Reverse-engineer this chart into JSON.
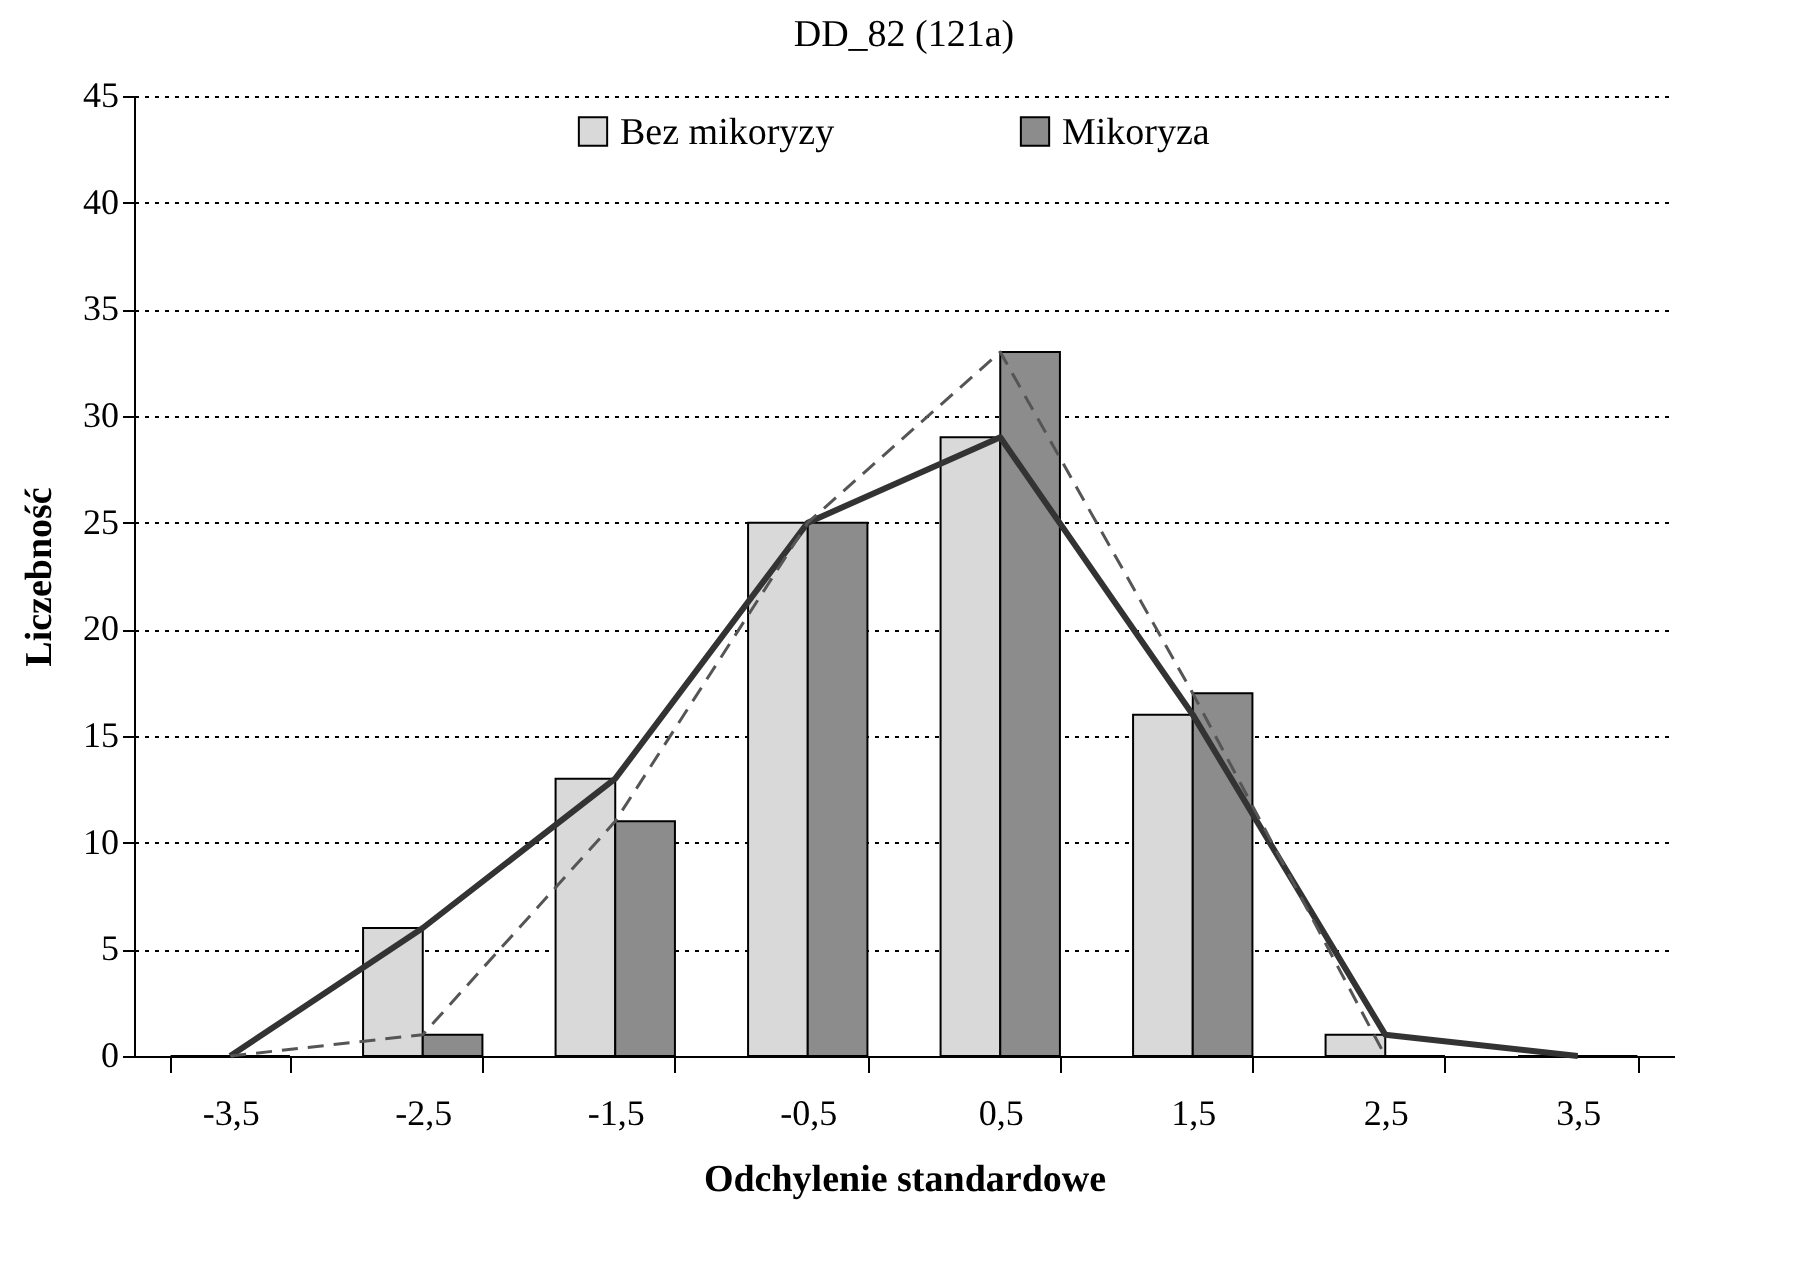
{
  "chart_data": {
    "type": "bar",
    "title": "DD_82 (121a)",
    "xlabel": "Odchylenie standardowe",
    "ylabel": "Liczebność",
    "categories": [
      "-3,5",
      "-2,5",
      "-1,5",
      "-0,5",
      "0,5",
      "1,5",
      "2,5",
      "3,5"
    ],
    "series": [
      {
        "name": "Bez mikoryzy",
        "color": "#d9d9d9",
        "values": [
          0,
          6,
          13,
          25,
          29,
          16,
          1,
          0
        ]
      },
      {
        "name": "Mikoryza",
        "color": "#8c8c8c",
        "values": [
          0,
          1,
          11,
          25,
          33,
          17,
          0,
          0
        ]
      },
      {
        "type": "line",
        "color": "#333333",
        "line_style": "solid",
        "values": [
          0,
          6,
          13,
          25,
          29,
          16,
          1,
          0
        ]
      },
      {
        "type": "line",
        "color": "#555555",
        "line_style": "dashed",
        "values": [
          0,
          1,
          11,
          25,
          33,
          17,
          0,
          null
        ]
      }
    ],
    "ylim": [
      0,
      45
    ],
    "yticks": [
      0,
      5,
      10,
      15,
      20,
      25,
      30,
      35,
      40,
      45
    ],
    "grid": "y",
    "legend": "top",
    "marker": "none"
  }
}
